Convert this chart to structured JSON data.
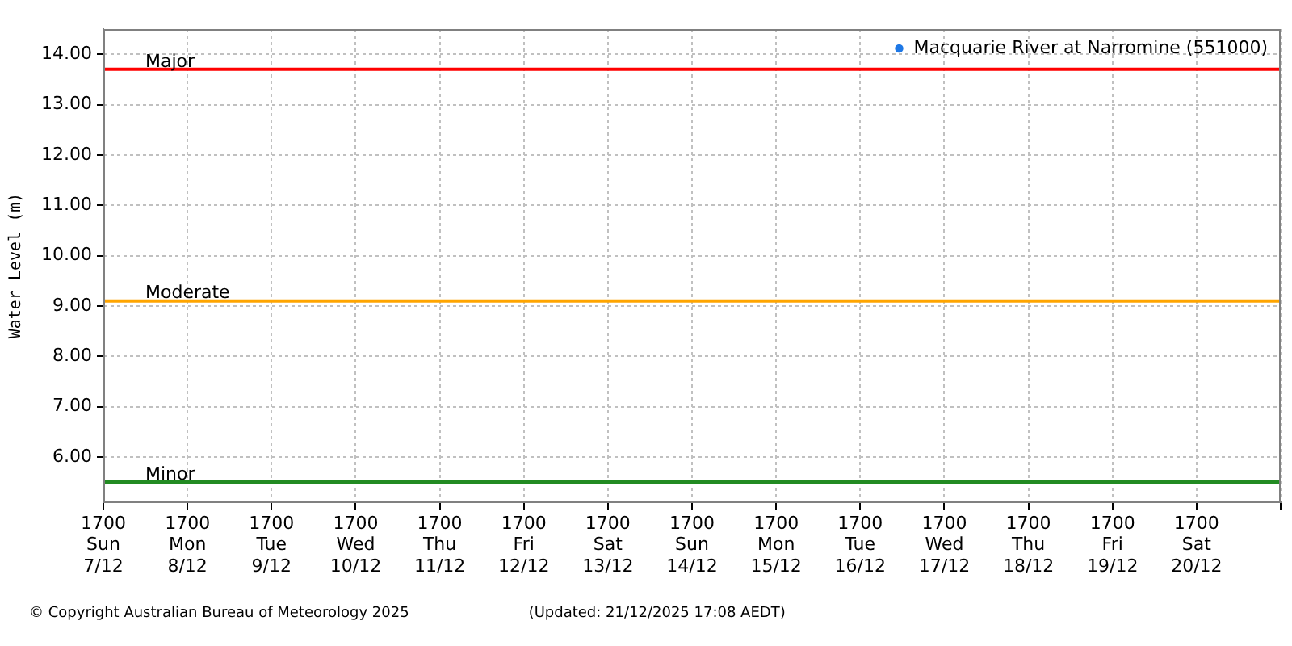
{
  "chart_data": {
    "type": "scatter",
    "ylabel": "Water Level (m)",
    "categories": [
      "1700\nSun\n7/12",
      "1700\nMon\n8/12",
      "1700\nTue\n9/12",
      "1700\nWed\n10/12",
      "1700\nThu\n11/12",
      "1700\nFri\n12/12",
      "1700\nSat\n13/12",
      "1700\nSun\n14/12",
      "1700\nMon\n15/12",
      "1700\nTue\n16/12",
      "1700\nWed\n17/12",
      "1700\nThu\n18/12",
      "1700\nFri\n19/12",
      "1700\nSat\n20/12",
      null
    ],
    "ylim": [
      5.1,
      14.5
    ],
    "yticks": [
      {
        "value": 6,
        "label": "6.00"
      },
      {
        "value": 7,
        "label": "7.00"
      },
      {
        "value": 8,
        "label": "8.00"
      },
      {
        "value": 9,
        "label": "9.00"
      },
      {
        "value": 10,
        "label": "10.00"
      },
      {
        "value": 11,
        "label": "11.00"
      },
      {
        "value": 12,
        "label": "12.00"
      },
      {
        "value": 13,
        "label": "13.00"
      },
      {
        "value": 14,
        "label": "14.00"
      }
    ],
    "series": [
      {
        "name": "Macquarie River at Narromine (551000)",
        "color": "#1e78e6",
        "values": [
          null,
          null,
          null,
          null,
          null,
          null,
          null,
          null,
          null,
          null,
          null,
          null,
          null,
          null,
          null
        ]
      }
    ],
    "ref_lines": [
      {
        "axis": "y",
        "value": 13.7,
        "label": "Major",
        "color": "#ff0000"
      },
      {
        "axis": "y",
        "value": 9.1,
        "label": "Moderate",
        "color": "#ffa500"
      },
      {
        "axis": "y",
        "value": 5.5,
        "label": "Minor",
        "color": "#228b22"
      }
    ],
    "annotations": [
      "© Copyright Australian Bureau of Meteorology 2025",
      "(Updated: 21/12/2025 17:08 AEDT)"
    ],
    "grid": true,
    "legend": "top right",
    "marker": "circle"
  }
}
